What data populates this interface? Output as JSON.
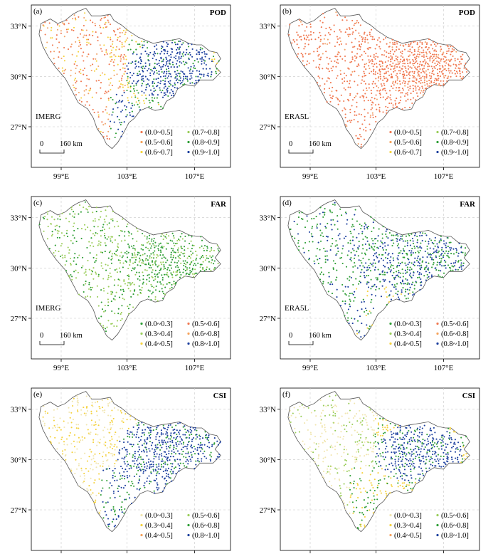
{
  "x_ticks": [
    "99°E",
    "103°E",
    "107°E"
  ],
  "y_ticks": [
    "33°N",
    "30°N",
    "27°N"
  ],
  "scale_bar": {
    "zero": "0",
    "distance": "160 km"
  },
  "colors": {
    "orange": "#f07850",
    "light_orange": "#f2a46a",
    "yellow": "#f5d23e",
    "light_green": "#9acd5a",
    "green": "#2e9e35",
    "blue": "#1c3f9e",
    "pale": "#f1e6b0"
  },
  "panels": [
    {
      "letter": "(a)",
      "metric": "POD",
      "product": "IMERG",
      "show_scale": true,
      "legend": [
        {
          "label": "(0.0~0.5]",
          "color": "#f07850"
        },
        {
          "label": "(0.7~0.8]",
          "color": "#9acd5a"
        },
        {
          "label": "(0.5~0.6]",
          "color": "#f5a25a"
        },
        {
          "label": "(0.8~0.9]",
          "color": "#2e9e35"
        },
        {
          "label": "(0.6~0.7]",
          "color": "#f5d23e"
        },
        {
          "label": "(0.9~1.0]",
          "color": "#1c3f9e"
        }
      ]
    },
    {
      "letter": "(b)",
      "metric": "POD",
      "product": "ERA5L",
      "show_scale": true,
      "legend": [
        {
          "label": "(0.0~0.5]",
          "color": "#f07850"
        },
        {
          "label": "(0.7~0.8]",
          "color": "#9acd5a"
        },
        {
          "label": "(0.5~0.6]",
          "color": "#f5a25a"
        },
        {
          "label": "(0.8~0.9]",
          "color": "#2e9e35"
        },
        {
          "label": "(0.6~0.7]",
          "color": "#f5d23e"
        },
        {
          "label": "(0.9~1.0]",
          "color": "#1c3f9e"
        }
      ]
    },
    {
      "letter": "(c)",
      "metric": "FAR",
      "product": "IMERG",
      "show_scale": true,
      "legend": [
        {
          "label": "(0.0~0.3]",
          "color": "#2e9e35"
        },
        {
          "label": "(0.5~0.6]",
          "color": "#f07850"
        },
        {
          "label": "(0.3~0.4]",
          "color": "#9acd5a"
        },
        {
          "label": "(0.6~0.8]",
          "color": "#f5a25a"
        },
        {
          "label": "(0.4~0.5]",
          "color": "#f5d23e"
        },
        {
          "label": "(0.8~1.0]",
          "color": "#1c3f9e"
        }
      ]
    },
    {
      "letter": "(d)",
      "metric": "FAR",
      "product": "ERA5L",
      "show_scale": true,
      "legend": [
        {
          "label": "(0.0~0.3]",
          "color": "#2e9e35"
        },
        {
          "label": "(0.5~0.6]",
          "color": "#f07850"
        },
        {
          "label": "(0.3~0.4]",
          "color": "#9acd5a"
        },
        {
          "label": "(0.6~0.8]",
          "color": "#f5a25a"
        },
        {
          "label": "(0.4~0.5]",
          "color": "#f5d23e"
        },
        {
          "label": "(0.8~1.0]",
          "color": "#1c3f9e"
        }
      ]
    },
    {
      "letter": "(e)",
      "metric": "CSI",
      "product": "",
      "show_scale": false,
      "legend": [
        {
          "label": "(0.0~0.3]",
          "color": "#f1e6b0"
        },
        {
          "label": "(0.5~0.6]",
          "color": "#9acd5a"
        },
        {
          "label": "(0.3~0.4]",
          "color": "#f5d23e"
        },
        {
          "label": "(0.6~0.8]",
          "color": "#2e9e35"
        },
        {
          "label": "(0.4~0.5]",
          "color": "#f5a25a"
        },
        {
          "label": "(0.8~1.0]",
          "color": "#1c3f9e"
        }
      ]
    },
    {
      "letter": "(f)",
      "metric": "CSI",
      "product": "",
      "show_scale": false,
      "legend": [
        {
          "label": "(0.0~0.3]",
          "color": "#f1e6b0"
        },
        {
          "label": "(0.5~0.6]",
          "color": "#9acd5a"
        },
        {
          "label": "(0.3~0.4]",
          "color": "#f5d23e"
        },
        {
          "label": "(0.6~0.8]",
          "color": "#2e9e35"
        },
        {
          "label": "(0.4~0.5]",
          "color": "#f5a25a"
        },
        {
          "label": "(0.8~1.0]",
          "color": "#1c3f9e"
        }
      ]
    }
  ]
}
